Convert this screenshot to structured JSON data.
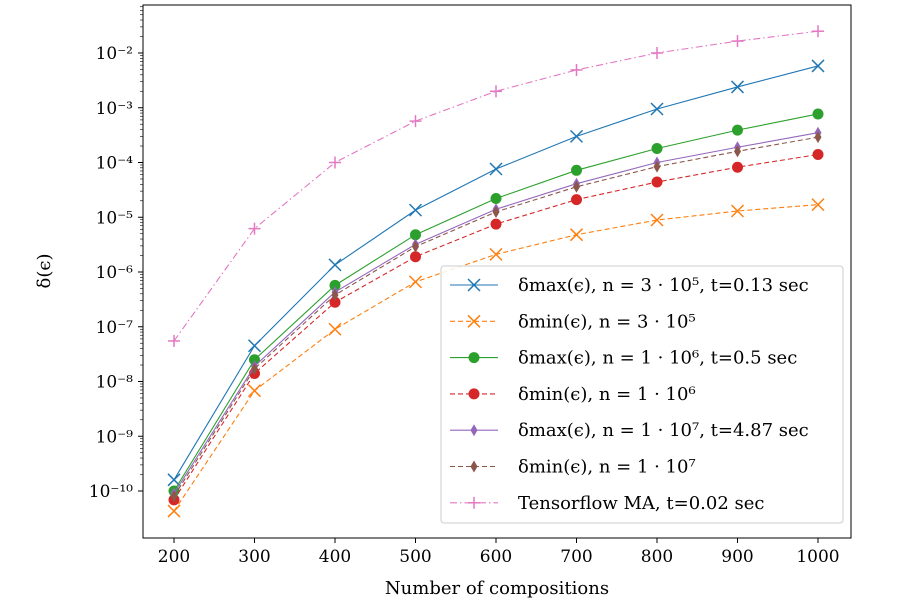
{
  "chart_data": {
    "type": "line",
    "title": "",
    "xlabel": "Number of compositions",
    "ylabel": "δ(ϵ)",
    "yscale": "log",
    "xlim": [
      160,
      1040
    ],
    "ylim": [
      1.4e-11,
      0.05
    ],
    "x": [
      200,
      300,
      400,
      500,
      600,
      700,
      800,
      900,
      1000
    ],
    "xticks": [
      200,
      300,
      400,
      500,
      600,
      700,
      800,
      900,
      1000
    ],
    "xtick_labels": [
      "200",
      "300",
      "400",
      "500",
      "600",
      "700",
      "800",
      "900",
      "1000"
    ],
    "yticks": [
      -10,
      -9,
      -8,
      -7,
      -6,
      -5,
      -4,
      -3,
      -2
    ],
    "ytick_labels": [
      "10⁻¹⁰",
      "10⁻⁹",
      "10⁻⁸",
      "10⁻⁷",
      "10⁻⁶",
      "10⁻⁵",
      "10⁻⁴",
      "10⁻³",
      "10⁻²"
    ],
    "legend_position": "lower-right",
    "grid": false,
    "series": [
      {
        "name": "δmax(ϵ), n = 3 · 10⁵, t=0.13 sec",
        "color": "#1f77b4",
        "dash": "solid",
        "marker": "x",
        "values": [
          1.6e-10,
          4.5e-08,
          1.35e-06,
          1.35e-05,
          7.6e-05,
          0.0003,
          0.00095,
          0.0024,
          0.0058
        ]
      },
      {
        "name": "δmin(ϵ), n = 3 · 10⁵",
        "color": "#ff7f0e",
        "dash": "dashed",
        "marker": "x",
        "values": [
          4.3e-11,
          6.8e-09,
          9e-08,
          6.6e-07,
          2.1e-06,
          4.8e-06,
          8.9e-06,
          1.3e-05,
          1.7e-05
        ]
      },
      {
        "name": "δmax(ϵ), n = 1 · 10⁶, t=0.5 sec",
        "color": "#2ca02c",
        "dash": "solid",
        "marker": "circle",
        "values": [
          1e-10,
          2.5e-08,
          5.7e-07,
          4.8e-06,
          2.2e-05,
          7.2e-05,
          0.00018,
          0.00039,
          0.00077
        ]
      },
      {
        "name": "δmin(ϵ), n = 1 · 10⁶",
        "color": "#d62728",
        "dash": "dashed",
        "marker": "circle",
        "values": [
          6.9e-11,
          1.4e-08,
          2.8e-07,
          1.9e-06,
          7.5e-06,
          2.1e-05,
          4.4e-05,
          8.2e-05,
          0.00014
        ]
      },
      {
        "name": "δmax(ϵ), n = 1 · 10⁷, t=4.87 sec",
        "color": "#9467bd",
        "dash": "solid",
        "marker": "thin_diamond",
        "values": [
          9e-11,
          1.9e-08,
          4.3e-07,
          3.2e-06,
          1.4e-05,
          4.1e-05,
          0.0001,
          0.00019,
          0.00035
        ]
      },
      {
        "name": "δmin(ϵ), n = 1 · 10⁷",
        "color": "#8c564b",
        "dash": "dashed",
        "marker": "thin_diamond",
        "values": [
          8e-11,
          1.7e-08,
          3.8e-07,
          2.9e-06,
          1.25e-05,
          3.6e-05,
          8.4e-05,
          0.00016,
          0.00029
        ]
      },
      {
        "name": "Tensorflow MA, t=0.02 sec",
        "color": "#e377c2",
        "dash": "dashdot",
        "marker": "plus",
        "values": [
          5.5e-08,
          6.2e-06,
          0.0001,
          0.00057,
          0.002,
          0.0049,
          0.01,
          0.0165,
          0.025
        ]
      }
    ]
  }
}
